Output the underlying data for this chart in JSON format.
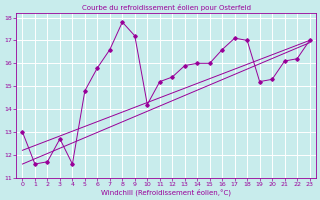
{
  "title": "Courbe du refroidissement éolien pour Osterfeld",
  "xlabel": "Windchill (Refroidissement éolien,°C)",
  "background_color": "#c8ecec",
  "grid_color": "#ffffff",
  "line_color": "#990099",
  "xlim": [
    -0.5,
    23.5
  ],
  "ylim": [
    11,
    18.2
  ],
  "xticks": [
    0,
    1,
    2,
    3,
    4,
    5,
    6,
    7,
    8,
    9,
    10,
    11,
    12,
    13,
    14,
    15,
    16,
    17,
    18,
    19,
    20,
    21,
    22,
    23
  ],
  "yticks": [
    11,
    12,
    13,
    14,
    15,
    16,
    17,
    18
  ],
  "series1_x": [
    0,
    1,
    2,
    3,
    4,
    5,
    6,
    7,
    8,
    9,
    10,
    11,
    12,
    13,
    14,
    15,
    16,
    17,
    18,
    19,
    20,
    21,
    22,
    23
  ],
  "series1_y": [
    13.0,
    11.6,
    11.7,
    12.7,
    11.6,
    14.8,
    15.8,
    16.6,
    17.8,
    17.2,
    14.2,
    15.2,
    15.4,
    15.9,
    16.0,
    16.0,
    16.6,
    17.1,
    17.0,
    15.2,
    15.3,
    16.1,
    16.2,
    17.0
  ],
  "series2_x": [
    0,
    23
  ],
  "series2_y": [
    11.6,
    16.9
  ],
  "series3_x": [
    0,
    23
  ],
  "series3_y": [
    12.2,
    17.0
  ]
}
